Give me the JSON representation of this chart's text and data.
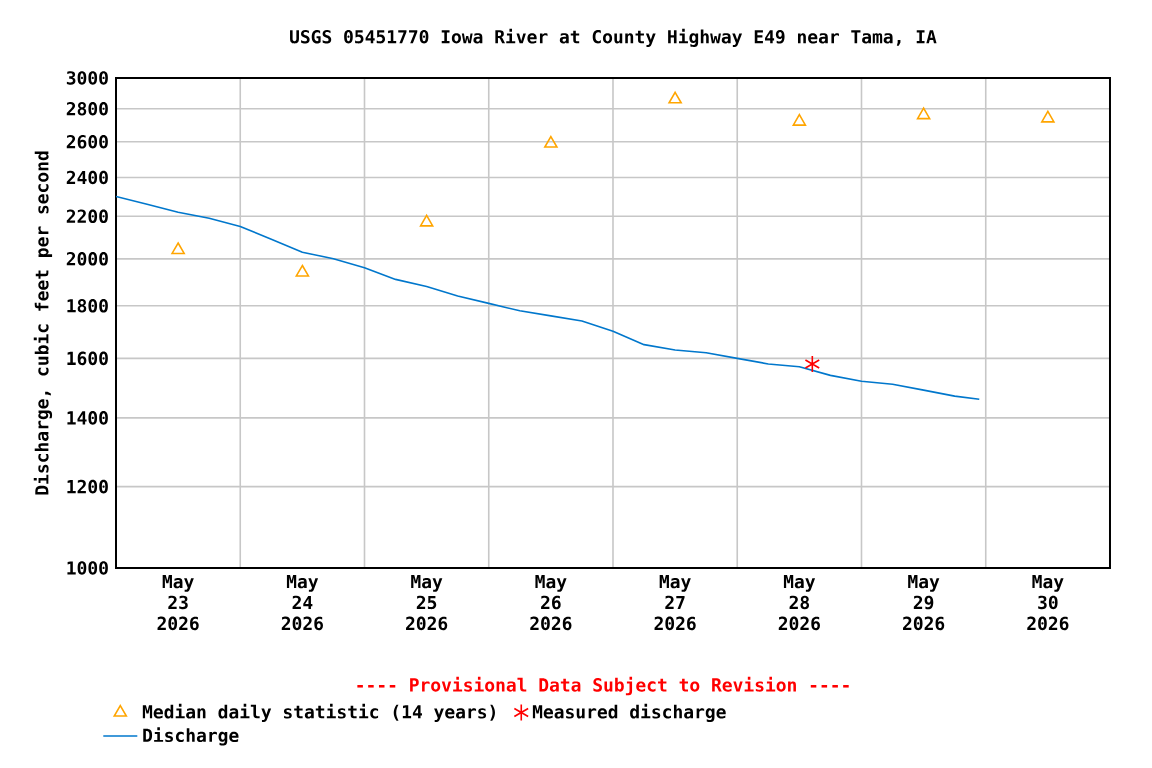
{
  "chart_data": {
    "type": "scatter",
    "title": "USGS 05451770 Iowa River at County Highway E49 near Tama, IA",
    "ylabel": "Discharge, cubic feet per second",
    "annotations": [
      "---- Provisional Data Subject to Revision ----"
    ],
    "log": "y",
    "grid": true,
    "legend": "bottom",
    "xlim": [
      "2026-05-23T00:00",
      "2026-05-31T00:00"
    ],
    "xticks": [
      {
        "value": "2026-05-23T00:00",
        "label": null
      },
      {
        "value": "2026-05-23T12:00",
        "label": "May 23 2026"
      },
      {
        "value": "2026-05-24T00:00",
        "label": null
      },
      {
        "value": "2026-05-24T12:00",
        "label": "May 24 2026"
      },
      {
        "value": "2026-05-25T00:00",
        "label": null
      },
      {
        "value": "2026-05-25T12:00",
        "label": "May 25 2026"
      },
      {
        "value": "2026-05-26T00:00",
        "label": null
      },
      {
        "value": "2026-05-26T12:00",
        "label": "May 26 2026"
      },
      {
        "value": "2026-05-27T00:00",
        "label": null
      },
      {
        "value": "2026-05-27T12:00",
        "label": "May 27 2026"
      },
      {
        "value": "2026-05-28T00:00",
        "label": null
      },
      {
        "value": "2026-05-28T12:00",
        "label": "May 28 2026"
      },
      {
        "value": "2026-05-29T00:00",
        "label": null
      },
      {
        "value": "2026-05-29T12:00",
        "label": "May 29 2026"
      },
      {
        "value": "2026-05-30T00:00",
        "label": null
      },
      {
        "value": "2026-05-30T12:00",
        "label": "May 30 2026"
      },
      {
        "value": "2026-05-31T00:00",
        "label": null
      }
    ],
    "ylim": [
      1000,
      3000
    ],
    "yticks": [
      1000,
      1200,
      1400,
      1600,
      1800,
      2000,
      2200,
      2400,
      2600,
      2800,
      3000
    ],
    "series": [
      {
        "name": "Median daily statistic (14 years)",
        "marker": "triangle",
        "color": "#ffa500",
        "x": [
          "2026-05-23T12:00",
          "2026-05-24T12:00",
          "2026-05-25T12:00",
          "2026-05-26T12:00",
          "2026-05-27T12:00",
          "2026-05-28T12:00",
          "2026-05-29T12:00",
          "2026-05-30T12:00"
        ],
        "values": [
          2040,
          1940,
          2170,
          2590,
          2860,
          2720,
          2760,
          2740
        ]
      },
      {
        "name": "Measured discharge",
        "marker": "cross",
        "color": "#ff0000",
        "x": [
          "2026-05-28T14:30"
        ],
        "values": [
          1580
        ]
      },
      {
        "name": "Discharge",
        "type": "line",
        "marker": "none",
        "line_style": "solid",
        "color": "#0077cc",
        "x": [
          "2026-05-23T00:00",
          "2026-05-23T06:00",
          "2026-05-23T12:00",
          "2026-05-23T18:00",
          "2026-05-24T00:00",
          "2026-05-24T06:00",
          "2026-05-24T12:00",
          "2026-05-24T18:00",
          "2026-05-25T00:00",
          "2026-05-25T06:00",
          "2026-05-25T12:00",
          "2026-05-25T18:00",
          "2026-05-26T00:00",
          "2026-05-26T06:00",
          "2026-05-26T12:00",
          "2026-05-26T18:00",
          "2026-05-27T00:00",
          "2026-05-27T06:00",
          "2026-05-27T12:00",
          "2026-05-27T18:00",
          "2026-05-28T00:00",
          "2026-05-28T06:00",
          "2026-05-28T12:00",
          "2026-05-28T18:00",
          "2026-05-29T00:00",
          "2026-05-29T06:00",
          "2026-05-29T12:00",
          "2026-05-29T18:00",
          "2026-05-29T22:45"
        ],
        "values": [
          2300,
          2260,
          2220,
          2190,
          2150,
          2090,
          2030,
          2000,
          1960,
          1910,
          1880,
          1840,
          1810,
          1780,
          1760,
          1740,
          1700,
          1650,
          1630,
          1620,
          1600,
          1580,
          1570,
          1540,
          1520,
          1510,
          1490,
          1470,
          1460
        ]
      }
    ]
  }
}
